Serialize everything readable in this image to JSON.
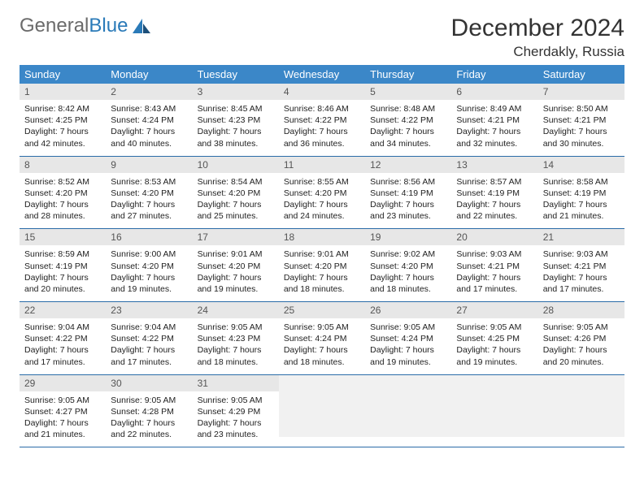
{
  "brand": {
    "text1": "General",
    "text2": "Blue"
  },
  "title": "December 2024",
  "location": "Cherdakly, Russia",
  "header_bg": "#3b87c8",
  "rule_color": "#2a6ca8",
  "daynum_bg": "#e7e7e7",
  "weekdays": [
    "Sunday",
    "Monday",
    "Tuesday",
    "Wednesday",
    "Thursday",
    "Friday",
    "Saturday"
  ],
  "weeks": [
    [
      {
        "n": "1",
        "sr": "8:42 AM",
        "ss": "4:25 PM",
        "dl": "7 hours and 42 minutes."
      },
      {
        "n": "2",
        "sr": "8:43 AM",
        "ss": "4:24 PM",
        "dl": "7 hours and 40 minutes."
      },
      {
        "n": "3",
        "sr": "8:45 AM",
        "ss": "4:23 PM",
        "dl": "7 hours and 38 minutes."
      },
      {
        "n": "4",
        "sr": "8:46 AM",
        "ss": "4:22 PM",
        "dl": "7 hours and 36 minutes."
      },
      {
        "n": "5",
        "sr": "8:48 AM",
        "ss": "4:22 PM",
        "dl": "7 hours and 34 minutes."
      },
      {
        "n": "6",
        "sr": "8:49 AM",
        "ss": "4:21 PM",
        "dl": "7 hours and 32 minutes."
      },
      {
        "n": "7",
        "sr": "8:50 AM",
        "ss": "4:21 PM",
        "dl": "7 hours and 30 minutes."
      }
    ],
    [
      {
        "n": "8",
        "sr": "8:52 AM",
        "ss": "4:20 PM",
        "dl": "7 hours and 28 minutes."
      },
      {
        "n": "9",
        "sr": "8:53 AM",
        "ss": "4:20 PM",
        "dl": "7 hours and 27 minutes."
      },
      {
        "n": "10",
        "sr": "8:54 AM",
        "ss": "4:20 PM",
        "dl": "7 hours and 25 minutes."
      },
      {
        "n": "11",
        "sr": "8:55 AM",
        "ss": "4:20 PM",
        "dl": "7 hours and 24 minutes."
      },
      {
        "n": "12",
        "sr": "8:56 AM",
        "ss": "4:19 PM",
        "dl": "7 hours and 23 minutes."
      },
      {
        "n": "13",
        "sr": "8:57 AM",
        "ss": "4:19 PM",
        "dl": "7 hours and 22 minutes."
      },
      {
        "n": "14",
        "sr": "8:58 AM",
        "ss": "4:19 PM",
        "dl": "7 hours and 21 minutes."
      }
    ],
    [
      {
        "n": "15",
        "sr": "8:59 AM",
        "ss": "4:19 PM",
        "dl": "7 hours and 20 minutes."
      },
      {
        "n": "16",
        "sr": "9:00 AM",
        "ss": "4:20 PM",
        "dl": "7 hours and 19 minutes."
      },
      {
        "n": "17",
        "sr": "9:01 AM",
        "ss": "4:20 PM",
        "dl": "7 hours and 19 minutes."
      },
      {
        "n": "18",
        "sr": "9:01 AM",
        "ss": "4:20 PM",
        "dl": "7 hours and 18 minutes."
      },
      {
        "n": "19",
        "sr": "9:02 AM",
        "ss": "4:20 PM",
        "dl": "7 hours and 18 minutes."
      },
      {
        "n": "20",
        "sr": "9:03 AM",
        "ss": "4:21 PM",
        "dl": "7 hours and 17 minutes."
      },
      {
        "n": "21",
        "sr": "9:03 AM",
        "ss": "4:21 PM",
        "dl": "7 hours and 17 minutes."
      }
    ],
    [
      {
        "n": "22",
        "sr": "9:04 AM",
        "ss": "4:22 PM",
        "dl": "7 hours and 17 minutes."
      },
      {
        "n": "23",
        "sr": "9:04 AM",
        "ss": "4:22 PM",
        "dl": "7 hours and 17 minutes."
      },
      {
        "n": "24",
        "sr": "9:05 AM",
        "ss": "4:23 PM",
        "dl": "7 hours and 18 minutes."
      },
      {
        "n": "25",
        "sr": "9:05 AM",
        "ss": "4:24 PM",
        "dl": "7 hours and 18 minutes."
      },
      {
        "n": "26",
        "sr": "9:05 AM",
        "ss": "4:24 PM",
        "dl": "7 hours and 19 minutes."
      },
      {
        "n": "27",
        "sr": "9:05 AM",
        "ss": "4:25 PM",
        "dl": "7 hours and 19 minutes."
      },
      {
        "n": "28",
        "sr": "9:05 AM",
        "ss": "4:26 PM",
        "dl": "7 hours and 20 minutes."
      }
    ],
    [
      {
        "n": "29",
        "sr": "9:05 AM",
        "ss": "4:27 PM",
        "dl": "7 hours and 21 minutes."
      },
      {
        "n": "30",
        "sr": "9:05 AM",
        "ss": "4:28 PM",
        "dl": "7 hours and 22 minutes."
      },
      {
        "n": "31",
        "sr": "9:05 AM",
        "ss": "4:29 PM",
        "dl": "7 hours and 23 minutes."
      },
      null,
      null,
      null,
      null
    ]
  ],
  "labels": {
    "sunrise": "Sunrise:",
    "sunset": "Sunset:",
    "daylight": "Daylight:"
  }
}
